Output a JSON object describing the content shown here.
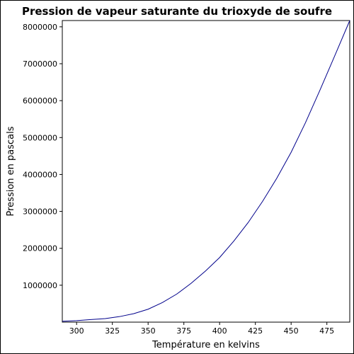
{
  "chart_data": {
    "type": "line",
    "title": "Pression de vapeur saturante du trioxyde de soufre",
    "xlabel": "Température en kelvins",
    "ylabel": "Pression en pascals",
    "xlim": [
      290,
      491
    ],
    "ylim": [
      0,
      8170000
    ],
    "x_ticks": [
      300,
      325,
      350,
      375,
      400,
      425,
      450,
      475
    ],
    "y_ticks": [
      1000000,
      2000000,
      3000000,
      4000000,
      5000000,
      6000000,
      7000000,
      8000000
    ],
    "grid": false,
    "line_color": "#00008b",
    "series": [
      {
        "x": [
          290,
          300,
          310,
          320,
          330,
          340,
          350,
          360,
          370,
          380,
          390,
          400,
          410,
          420,
          430,
          440,
          450,
          460,
          470,
          480,
          491
        ],
        "values": [
          25000,
          40000,
          70000,
          95000,
          150000,
          230000,
          350000,
          530000,
          760000,
          1050000,
          1380000,
          1750000,
          2200000,
          2700000,
          3270000,
          3900000,
          4600000,
          5400000,
          6270000,
          7170000,
          8170000
        ]
      }
    ]
  }
}
